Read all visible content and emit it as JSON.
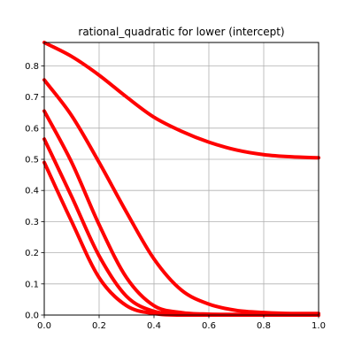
{
  "chart_data": {
    "type": "line",
    "title": "rational_quadratic for lower (intercept)",
    "xlabel": "",
    "ylabel": "",
    "xlim": [
      0.0,
      1.0
    ],
    "ylim": [
      0.0,
      0.875
    ],
    "xticks": [
      "0.0",
      "0.2",
      "0.4",
      "0.6",
      "0.8",
      "1.0"
    ],
    "yticks": [
      "0.0",
      "0.1",
      "0.2",
      "0.3",
      "0.4",
      "0.5",
      "0.6",
      "0.7",
      "0.8"
    ],
    "grid": true,
    "legend": "none",
    "series_color": "#ff0000",
    "grid_color": "#b0b0b0",
    "series": [
      {
        "x": [
          0.0,
          0.1,
          0.2,
          0.3,
          0.4,
          0.5,
          0.6,
          0.7,
          0.8,
          0.9,
          1.0
        ],
        "values": [
          0.875,
          0.83,
          0.77,
          0.7,
          0.635,
          0.59,
          0.555,
          0.53,
          0.515,
          0.508,
          0.505
        ]
      },
      {
        "x": [
          0.0,
          0.1,
          0.2,
          0.3,
          0.4,
          0.5,
          0.6,
          0.7,
          0.8,
          0.9,
          1.0
        ],
        "values": [
          0.755,
          0.64,
          0.49,
          0.33,
          0.18,
          0.08,
          0.035,
          0.015,
          0.008,
          0.005,
          0.005
        ]
      },
      {
        "x": [
          0.0,
          0.1,
          0.2,
          0.3,
          0.4,
          0.5,
          0.6,
          0.7,
          0.8,
          0.9,
          1.0
        ],
        "values": [
          0.655,
          0.49,
          0.29,
          0.12,
          0.03,
          0.008,
          0.003,
          0.002,
          0.0,
          0.0,
          0.0
        ]
      },
      {
        "x": [
          0.0,
          0.1,
          0.2,
          0.3,
          0.4,
          0.5,
          0.6,
          0.7,
          0.8,
          0.9,
          1.0
        ],
        "values": [
          0.565,
          0.38,
          0.19,
          0.06,
          0.012,
          0.003,
          0.0,
          0.0,
          0.0,
          0.0,
          0.0
        ]
      },
      {
        "x": [
          0.0,
          0.1,
          0.2,
          0.3,
          0.4,
          0.5,
          0.6,
          0.7,
          0.8,
          0.9,
          1.0
        ],
        "values": [
          0.49,
          0.3,
          0.12,
          0.03,
          0.005,
          0.0,
          0.0,
          0.0,
          0.0,
          0.0,
          0.0
        ]
      }
    ]
  }
}
